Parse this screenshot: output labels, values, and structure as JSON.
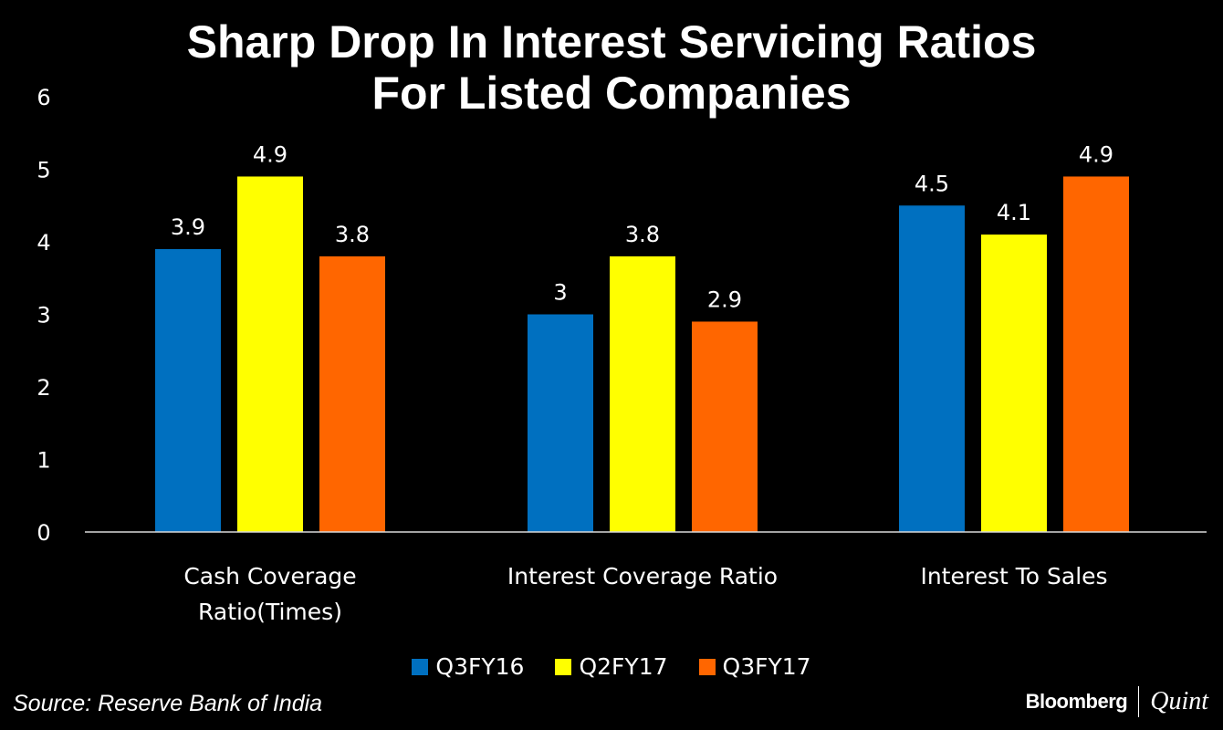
{
  "chart_data": {
    "type": "bar",
    "title": "Sharp Drop In Interest Servicing Ratios For Listed Companies",
    "title_lines": [
      "Sharp Drop In Interest Servicing Ratios",
      "For Listed Companies"
    ],
    "categories": [
      "Cash Coverage Ratio(Times)",
      "Interest Coverage Ratio",
      "Interest To Sales"
    ],
    "category_lines": [
      [
        "Cash Coverage",
        "Ratio(Times)"
      ],
      [
        "Interest Coverage Ratio"
      ],
      [
        "Interest To Sales"
      ]
    ],
    "series": [
      {
        "name": "Q3FY16",
        "color": "#0070C0",
        "values": [
          3.9,
          3,
          4.5
        ],
        "labels": [
          "3.9",
          "3",
          "4.5"
        ]
      },
      {
        "name": "Q2FY17",
        "color": "#FFFF00",
        "values": [
          4.9,
          3.8,
          4.1
        ],
        "labels": [
          "4.9",
          "3.8",
          "4.1"
        ]
      },
      {
        "name": "Q3FY17",
        "color": "#FF6600",
        "values": [
          3.8,
          2.9,
          4.9
        ],
        "labels": [
          "3.8",
          "2.9",
          "4.9"
        ]
      }
    ],
    "xlabel": "",
    "ylabel": "",
    "ylim": [
      0,
      6
    ],
    "yticks": [
      "0",
      "1",
      "2",
      "3",
      "4",
      "5",
      "6"
    ],
    "grid": false,
    "legend_position": "bottom-center",
    "data_labels": true
  },
  "source": "Source: Reserve Bank of India",
  "brand": {
    "left": "Bloomberg",
    "right": "Quint"
  },
  "colors": {
    "background": "#000000",
    "text": "#FFFFFF"
  }
}
